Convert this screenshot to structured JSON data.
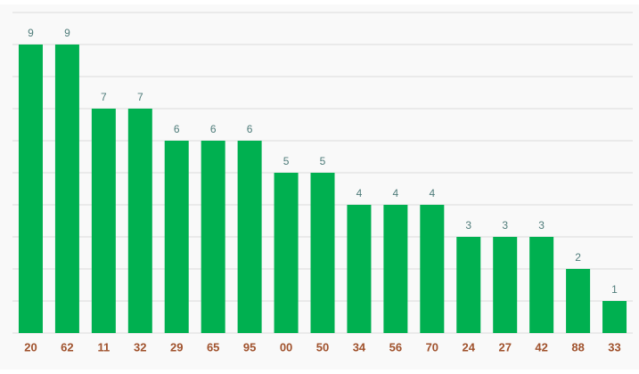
{
  "chart_data": {
    "type": "bar",
    "categories": [
      "20",
      "62",
      "11",
      "32",
      "29",
      "65",
      "95",
      "00",
      "50",
      "34",
      "56",
      "70",
      "24",
      "27",
      "42",
      "88",
      "33"
    ],
    "values": [
      9,
      9,
      7,
      7,
      6,
      6,
      6,
      5,
      5,
      4,
      4,
      4,
      3,
      3,
      3,
      2,
      1
    ],
    "color": "#00b050",
    "ylim": [
      0,
      10
    ],
    "yticks": [
      0,
      1,
      2,
      3,
      4,
      5,
      6,
      7,
      8,
      9,
      10
    ],
    "grid": true
  }
}
